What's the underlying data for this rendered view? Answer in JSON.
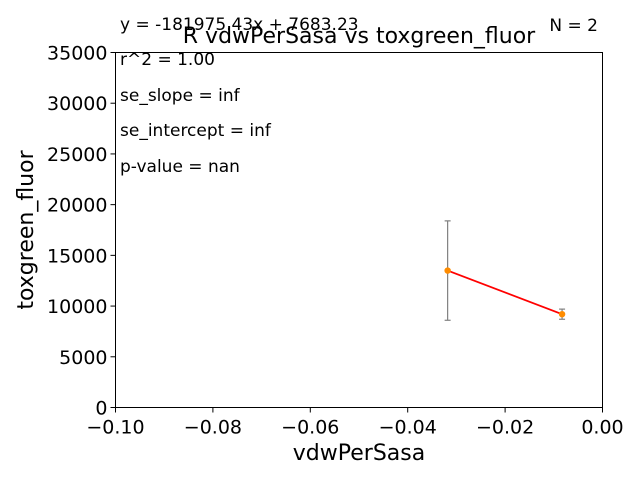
{
  "chart_data": {
    "type": "scatter",
    "title": "R vdwPerSasa vs toxgreen_fluor",
    "xlabel": "vdwPerSasa",
    "ylabel": "toxgreen_fluor",
    "xlim": [
      -0.1,
      0.0
    ],
    "ylim": [
      0,
      35000
    ],
    "x_ticks": [
      -0.1,
      -0.08,
      -0.06,
      -0.04,
      -0.02,
      0.0
    ],
    "x_tick_labels": [
      "−0.10",
      "−0.08",
      "−0.06",
      "−0.04",
      "−0.02",
      "0.00"
    ],
    "y_ticks": [
      0,
      5000,
      10000,
      15000,
      20000,
      25000,
      30000,
      35000
    ],
    "y_tick_labels": [
      "0",
      "5000",
      "10000",
      "15000",
      "20000",
      "25000",
      "30000",
      "35000"
    ],
    "grid": false,
    "points": [
      {
        "x": -0.0318,
        "y": 13500,
        "err_low": 8600,
        "err_high": 18400
      },
      {
        "x": -0.0083,
        "y": 9200,
        "err_low": 8700,
        "err_high": 9700
      }
    ],
    "fit_line": {
      "x": [
        -0.0318,
        -0.0083
      ],
      "y": [
        13500,
        9200
      ]
    },
    "annotations": {
      "equation": "y = -181975.43x + 7683.23",
      "n": "N = 2",
      "r2": "r^2 = 1.00",
      "se_slope": "se_slope = inf",
      "se_intercept": "se_intercept = inf",
      "p_value": "p-value = nan"
    },
    "colors": {
      "point": "#ff8c00",
      "fit": "#ff0000",
      "errorbar": "#808080",
      "axes": "#000000"
    }
  }
}
